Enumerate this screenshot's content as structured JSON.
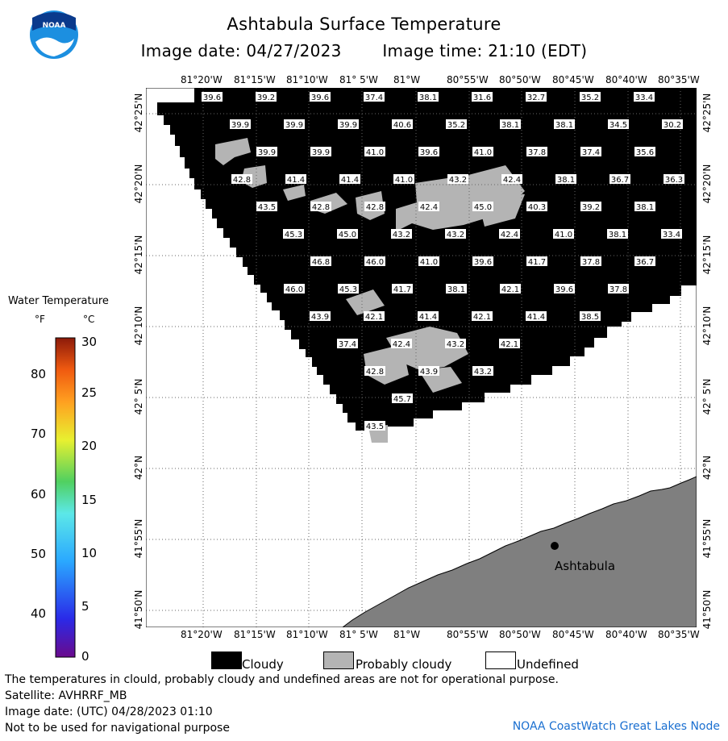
{
  "header": {
    "title": "Ashtabula Surface Temperature",
    "image_date": "Image date: 04/27/2023",
    "image_time": "Image time: 21:10 (EDT)"
  },
  "map": {
    "top_lon_labels": [
      "81°20'W",
      "81°15'W",
      "81°10'W",
      "81° 5'W",
      "81°W",
      "80°55'W",
      "80°50'W",
      "80°45'W",
      "80°40'W",
      "80°35'W"
    ],
    "bottom_lon_labels": [
      "81°20'W",
      "81°15'W",
      "81°10'W",
      "81° 5'W",
      "81°W",
      "80°55'W",
      "80°50'W",
      "80°45'W",
      "80°40'W",
      "80°35'W"
    ],
    "lat_labels": [
      "42°25'N",
      "42°20'N",
      "42°15'N",
      "42°10'N",
      "42° 5'N",
      "42°N",
      "41°55'N",
      "41°50'N"
    ],
    "city": "Ashtabula",
    "temperatures": [
      [
        "39.6",
        "39.2",
        "39.6",
        "37.4",
        "38.1",
        "31.6",
        "32.7",
        "35.2",
        "33.4"
      ],
      [
        "39.9",
        "39.9",
        "39.9",
        "40.6",
        "35.2",
        "38.1",
        "38.1",
        "34.5",
        "30.2"
      ],
      [
        "39.9",
        "39.9",
        "41.0",
        "39.6",
        "41.0",
        "37.8",
        "37.4",
        "35.6"
      ],
      [
        "42.8",
        "41.4",
        "41.4",
        "41.0",
        "43.2",
        "42.4",
        "38.1",
        "36.7",
        "36.3"
      ],
      [
        "43.5",
        "42.8",
        "42.8",
        "42.4",
        "45.0",
        "40.3",
        "39.2",
        "38.1"
      ],
      [
        "45.3",
        "45.0",
        "43.2",
        "43.2",
        "42.4",
        "41.0",
        "38.1",
        "33.4"
      ],
      [
        "46.8",
        "46.0",
        "41.0",
        "39.6",
        "41.7",
        "37.8",
        "36.7"
      ],
      [
        "46.0",
        "45.3",
        "41.7",
        "38.1",
        "42.1",
        "39.6",
        "37.8"
      ],
      [
        "43.9",
        "42.1",
        "41.4",
        "42.1",
        "41.4",
        "38.5"
      ],
      [
        "37.4",
        "42.4",
        "43.2",
        "42.1"
      ],
      [
        "42.8",
        "43.9",
        "43.2"
      ],
      [
        "45.7"
      ],
      [
        "43.5"
      ]
    ]
  },
  "legend": {
    "title": "Water Temperature",
    "unit_f": "°F",
    "unit_c": "°C",
    "f_ticks": [
      "80",
      "70",
      "60",
      "50",
      "40"
    ],
    "c_ticks": [
      "30",
      "25",
      "20",
      "15",
      "10",
      "5",
      "0"
    ]
  },
  "key": {
    "cloudy": "Cloudy",
    "probably_cloudy": "Probably cloudy",
    "undefined": "Undefined",
    "cloudy_color": "#000000",
    "probably_cloudy_color": "#b4b4b4",
    "undefined_color": "#ffffff"
  },
  "footer": {
    "warning": "The temperatures in clould, probably cloudy and undefined areas are not for operational purpose.",
    "satellite": "Satellite: AVHRRF_MB",
    "utc_date": "Image date: (UTC) 04/28/2023  01:10",
    "nav": "Not to be used for navigational purpose",
    "credit": "NOAA CoastWatch Great Lakes Node"
  },
  "colors": {
    "land": "#7f7f7f",
    "cloud": "#000000",
    "probably_cloudy": "#b4b4b4",
    "noaa_blue": "#1a6fd0"
  }
}
